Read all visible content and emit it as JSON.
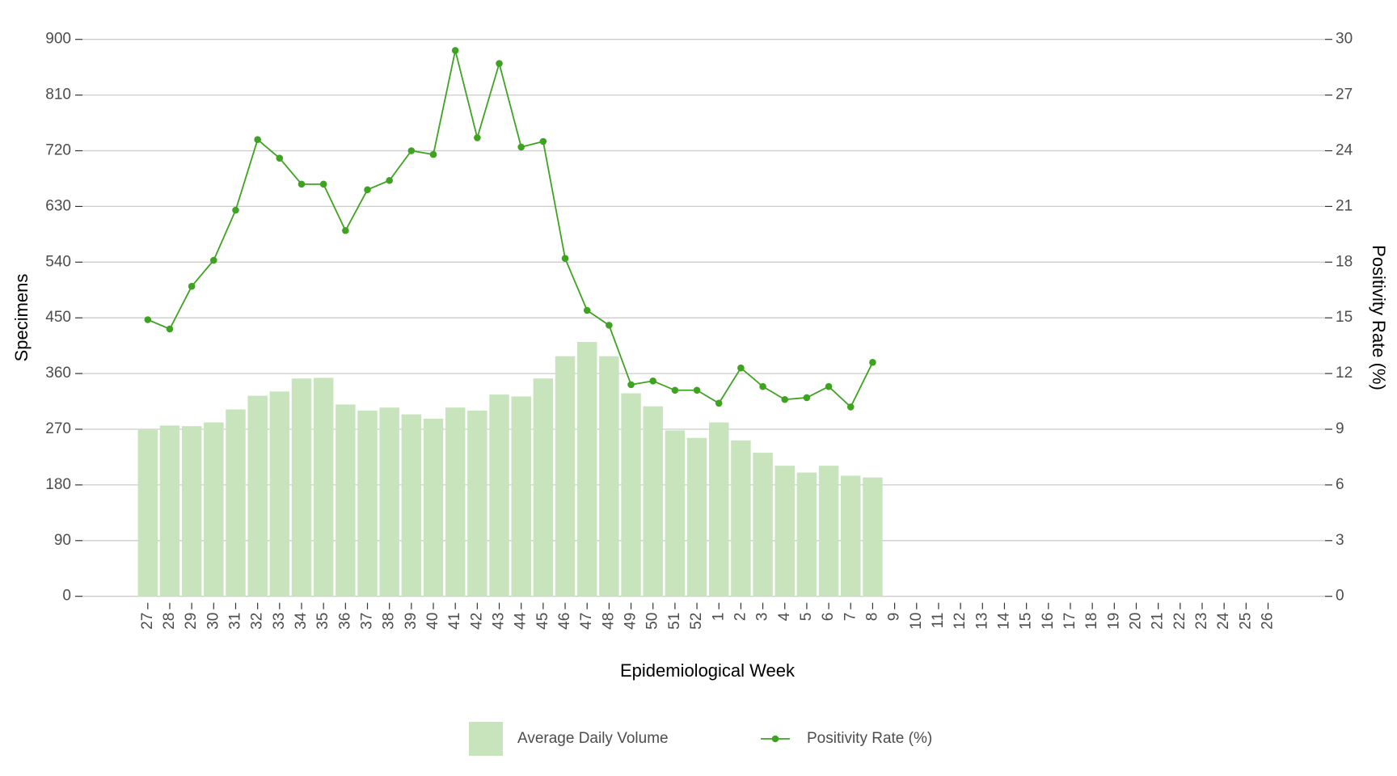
{
  "chart_data": {
    "type": "bar_line",
    "x_label": "Epidemiological Week",
    "y_label": "Specimens",
    "y2_label": "Positivity Rate (%)",
    "categories": [
      "27",
      "28",
      "29",
      "30",
      "31",
      "32",
      "33",
      "34",
      "35",
      "36",
      "37",
      "38",
      "39",
      "40",
      "41",
      "42",
      "43",
      "44",
      "45",
      "46",
      "47",
      "48",
      "49",
      "50",
      "51",
      "52",
      "1",
      "2",
      "3",
      "4",
      "5",
      "6",
      "7",
      "8",
      "9",
      "10",
      "11",
      "12",
      "13",
      "14",
      "15",
      "16",
      "17",
      "18",
      "19",
      "20",
      "21",
      "22",
      "23",
      "24",
      "25",
      "26"
    ],
    "series": [
      {
        "name": "Average Daily Volume",
        "type": "bar",
        "color": "#c7e4bc",
        "values": [
          269,
          276,
          275,
          281,
          302,
          324,
          331,
          352,
          353,
          310,
          300,
          305,
          294,
          287,
          305,
          300,
          326,
          323,
          352,
          388,
          411,
          388,
          328,
          307,
          268,
          256,
          281,
          252,
          232,
          211,
          200,
          211,
          195,
          192,
          null,
          null,
          null,
          null,
          null,
          null,
          null,
          null,
          null,
          null,
          null,
          null,
          null,
          null,
          null,
          null,
          null,
          null
        ]
      },
      {
        "name": "Positivity Rate (%)",
        "type": "line",
        "axis": "y2",
        "color": "#3ea321",
        "values": [
          14.9,
          14.4,
          16.7,
          18.1,
          20.8,
          24.6,
          23.6,
          22.2,
          22.2,
          19.7,
          21.9,
          22.4,
          24.0,
          23.8,
          29.4,
          24.7,
          28.7,
          24.2,
          24.5,
          18.2,
          15.4,
          14.6,
          11.4,
          11.6,
          11.1,
          11.1,
          10.4,
          12.3,
          11.3,
          10.6,
          10.7,
          11.3,
          10.2,
          12.6,
          null,
          null,
          null,
          null,
          null,
          null,
          null,
          null,
          null,
          null,
          null,
          null,
          null,
          null,
          null,
          null,
          null,
          null
        ]
      }
    ],
    "ylim": [
      0,
      900
    ],
    "yticks": [
      0,
      90,
      180,
      270,
      360,
      450,
      540,
      630,
      720,
      810,
      900
    ],
    "y2lim": [
      0,
      30
    ],
    "y2ticks": [
      0,
      3,
      6,
      9,
      12,
      15,
      18,
      21,
      24,
      27,
      30
    ],
    "grid": true,
    "legend": "bottom"
  }
}
